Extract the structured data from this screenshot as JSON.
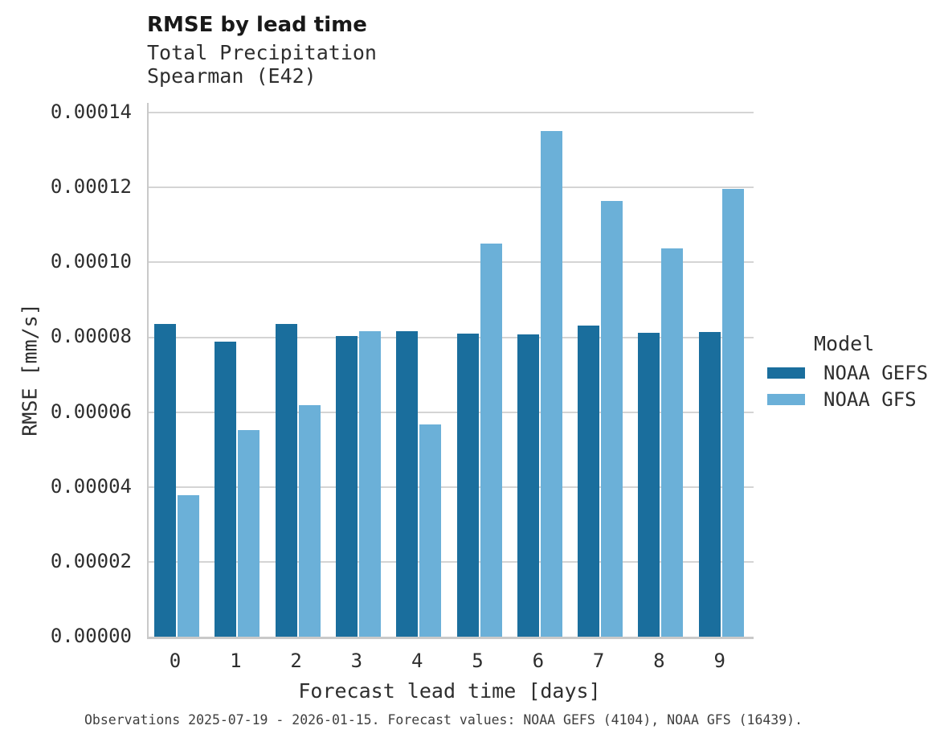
{
  "header": {
    "title": "RMSE by lead time",
    "subtitle_line1": "Total Precipitation",
    "subtitle_line2": "Spearman (E42)"
  },
  "footer": {
    "caption": "Observations 2025-07-19 - 2026-01-15. Forecast values: NOAA GEFS (4104), NOAA GFS (16439)."
  },
  "colors": {
    "gefs_dark_blue": "#1a6e9d",
    "gfs_light_blue": "#6bb0d8",
    "gridline_gray": "#d4d4d4",
    "spine_gray": "#c9c9c9",
    "text_dark": "#2e2e2e"
  },
  "chart_data": {
    "type": "bar",
    "title": "RMSE by lead time",
    "subtitle": [
      "Total Precipitation",
      "Spearman (E42)"
    ],
    "xlabel": "Forecast lead time [days]",
    "ylabel": "RMSE [mm/s]",
    "categories": [
      "0",
      "1",
      "2",
      "3",
      "4",
      "5",
      "6",
      "7",
      "8",
      "9"
    ],
    "series": [
      {
        "name": "NOAA GEFS",
        "color": "#1a6e9d",
        "values": [
          8.35e-05,
          7.88e-05,
          8.36e-05,
          8.04e-05,
          8.16e-05,
          8.09e-05,
          8.08e-05,
          8.31e-05,
          8.12e-05,
          8.14e-05
        ]
      },
      {
        "name": "NOAA GFS",
        "color": "#6bb0d8",
        "values": [
          3.78e-05,
          5.53e-05,
          6.19e-05,
          8.16e-05,
          5.66e-05,
          0.000105,
          0.0001351,
          0.0001164,
          0.0001037,
          0.0001197
        ]
      }
    ],
    "ylim": [
      0,
      0.0001426
    ],
    "yticks": [
      0,
      2e-05,
      4e-05,
      6e-05,
      8e-05,
      0.0001,
      0.00012,
      0.00014
    ],
    "ytick_labels": [
      "0.00000",
      "0.00002",
      "0.00004",
      "0.00006",
      "0.00008",
      "0.00010",
      "0.00012",
      "0.00014"
    ],
    "legend_title": "Model",
    "legend_position": "right",
    "grid": true
  }
}
